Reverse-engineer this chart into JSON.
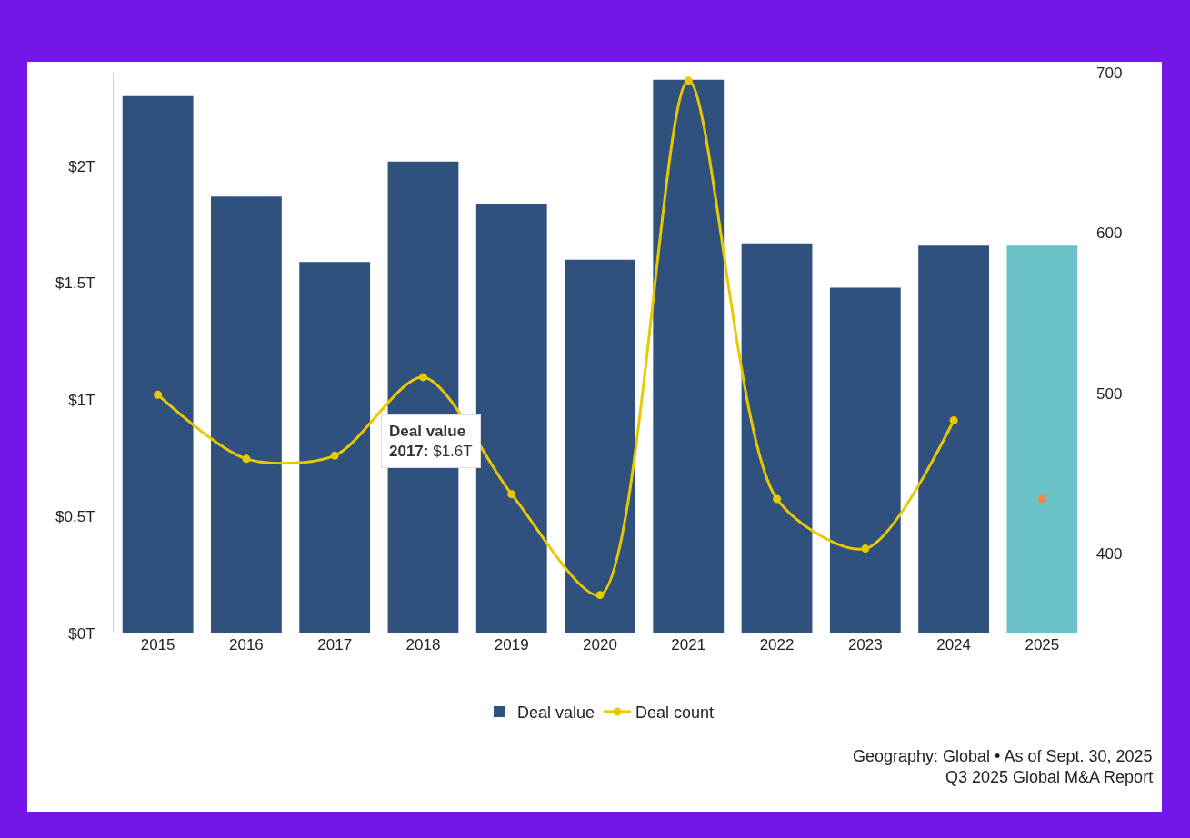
{
  "chart_data": {
    "type": "bar",
    "categories": [
      "2015",
      "2016",
      "2017",
      "2018",
      "2019",
      "2020",
      "2021",
      "2022",
      "2023",
      "2024",
      "2025"
    ],
    "series": [
      {
        "name": "Deal value",
        "colors": [
          "#30507e",
          "#30507e",
          "#30507e",
          "#30507e",
          "#30507e",
          "#30507e",
          "#30507e",
          "#30507e",
          "#30507e",
          "#30507e",
          "#6bc1c8"
        ],
        "values": [
          2.3,
          1.87,
          1.59,
          2.02,
          1.84,
          1.6,
          2.37,
          1.67,
          1.48,
          1.66,
          1.66
        ]
      },
      {
        "name": "Deal count",
        "type": "line",
        "axis": "y2",
        "color": "#e8c800",
        "marker": "circle",
        "values": [
          499,
          459,
          461,
          510,
          437,
          374,
          695,
          434,
          403,
          483,
          null
        ]
      },
      {
        "type": "scatter",
        "axis": "y2",
        "color": "#e8894a",
        "marker": "circle",
        "values": [
          null,
          null,
          null,
          null,
          null,
          null,
          null,
          null,
          null,
          null,
          434
        ]
      }
    ],
    "ylim": [
      0,
      2.4
    ],
    "yticks": [
      {
        "value": 0,
        "label": "$0T"
      },
      {
        "value": 0.5,
        "label": "$0.5T"
      },
      {
        "value": 1,
        "label": "$1T"
      },
      {
        "value": 1.5,
        "label": "$1.5T"
      },
      {
        "value": 2,
        "label": "$2T"
      }
    ],
    "y2lim": [
      350,
      700
    ],
    "y2ticks": [
      400,
      500,
      600,
      700
    ],
    "grid": false,
    "legend": "bottom",
    "annotations": [
      "Deal value\n2017: $1.6T",
      "Geography: Global • As of Sept. 30, 2025",
      "Q3 2025 Global M&A Report"
    ]
  }
}
